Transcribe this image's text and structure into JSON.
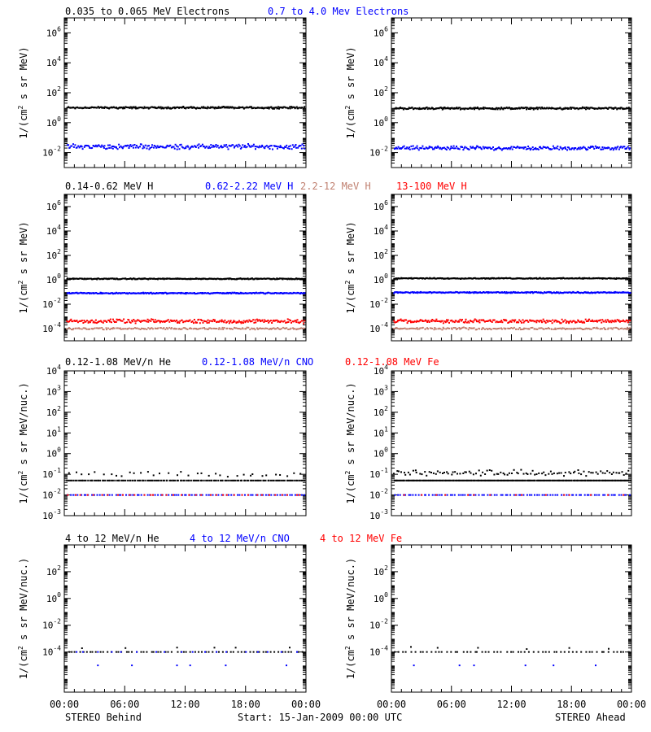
{
  "footer": {
    "left": "STEREO Behind",
    "center": "Start: 15-Jan-2009 00:00 UTC",
    "right": "STEREO Ahead"
  },
  "x_tick_labels": [
    "00:00",
    "06:00",
    "12:00",
    "18:00",
    "00:00"
  ],
  "chart_data": [
    {
      "type": "scatter",
      "panel": "electrons",
      "ylabel": "1/(cm2 s sr MeV)",
      "yscale": "log",
      "y_tick_exponents": [
        -2,
        0,
        2,
        4,
        6
      ],
      "ylim": [
        0.001,
        10000000
      ],
      "legend": [
        {
          "label": "0.035 to 0.065 MeV Electrons",
          "color": "#000000"
        },
        {
          "label": "0.7 to 4.0 Mev Electrons",
          "color": "#0000ff"
        }
      ],
      "series": {
        "behind": [
          {
            "name": "0.035 to 0.065 MeV Electrons",
            "color": "#000000",
            "level": 10,
            "spread_dex": 0.08,
            "density": 1.0
          },
          {
            "name": "0.7 to 4.0 Mev Electrons",
            "color": "#0000ff",
            "level": 0.025,
            "spread_dex": 0.2,
            "density": 0.8
          }
        ],
        "ahead": [
          {
            "name": "0.035 to 0.065 MeV Electrons",
            "color": "#000000",
            "level": 9,
            "spread_dex": 0.08,
            "density": 1.0
          },
          {
            "name": "0.7 to 4.0 Mev Electrons",
            "color": "#0000ff",
            "level": 0.02,
            "spread_dex": 0.15,
            "density": 0.8
          }
        ]
      }
    },
    {
      "type": "scatter",
      "panel": "protons",
      "ylabel": "1/(cm2 s sr MeV)",
      "yscale": "log",
      "y_tick_exponents": [
        -4,
        -2,
        0,
        2,
        4,
        6
      ],
      "ylim": [
        1e-05,
        10000000
      ],
      "legend": [
        {
          "label": "0.14-0.62 MeV H",
          "color": "#000000"
        },
        {
          "label": "0.62-2.22 MeV H",
          "color": "#0000ff"
        },
        {
          "label": "2.2-12 MeV H",
          "color": "#c08070"
        },
        {
          "label": "13-100 MeV H",
          "color": "#ff0000"
        }
      ],
      "series": {
        "behind": [
          {
            "name": "0.14-0.62 MeV H",
            "color": "#000000",
            "level": 1.2,
            "spread_dex": 0.05,
            "density": 1.0
          },
          {
            "name": "0.62-2.22 MeV H",
            "color": "#0000ff",
            "level": 0.08,
            "spread_dex": 0.06,
            "density": 1.0
          },
          {
            "name": "2.2-12 MeV H",
            "color": "#c08070",
            "level": 0.0001,
            "spread_dex": 0.1,
            "density": 0.6
          },
          {
            "name": "13-100 MeV H",
            "color": "#ff0000",
            "level": 0.0004,
            "spread_dex": 0.18,
            "density": 0.8
          }
        ],
        "ahead": [
          {
            "name": "0.14-0.62 MeV H",
            "color": "#000000",
            "level": 1.3,
            "spread_dex": 0.05,
            "density": 1.0
          },
          {
            "name": "0.62-2.22 MeV H",
            "color": "#0000ff",
            "level": 0.09,
            "spread_dex": 0.06,
            "density": 1.0
          },
          {
            "name": "2.2-12 MeV H",
            "color": "#c08070",
            "level": 0.0001,
            "spread_dex": 0.1,
            "density": 0.6
          },
          {
            "name": "13-100 MeV H",
            "color": "#ff0000",
            "level": 0.0004,
            "spread_dex": 0.18,
            "density": 0.8
          }
        ]
      }
    },
    {
      "type": "scatter",
      "panel": "heavy-ions-low",
      "ylabel": "1/(cm2 s sr MeV/nuc.)",
      "yscale": "log",
      "y_tick_exponents": [
        -3,
        -2,
        -1,
        0,
        1,
        2,
        3,
        4
      ],
      "ylim": [
        0.001,
        10000
      ],
      "legend": [
        {
          "label": "0.12-1.08 MeV/n He",
          "color": "#000000"
        },
        {
          "label": "0.12-1.08 MeV/n CNO",
          "color": "#0000ff"
        },
        {
          "label": "0.12-1.08 MeV Fe",
          "color": "#ff0000"
        }
      ],
      "series": {
        "behind": [
          {
            "name": "0.12-1.08 MeV/n He",
            "color": "#000000",
            "level": 0.05,
            "spread_dex": 0.0,
            "density": 0.5
          },
          {
            "name": "0.12-1.08 MeV/n He",
            "color": "#000000",
            "level": 0.1,
            "spread_dex": 0.15,
            "density": 0.12
          },
          {
            "name": "0.12-1.08 MeV/n CNO",
            "color": "#0000ff",
            "level": 0.01,
            "spread_dex": 0.0,
            "density": 0.3
          },
          {
            "name": "0.12-1.08 MeV Fe",
            "color": "#ff0000",
            "level": 0.01,
            "spread_dex": 0.0,
            "density": 0.12
          }
        ],
        "ahead": [
          {
            "name": "0.12-1.08 MeV/n He",
            "color": "#000000",
            "level": 0.05,
            "spread_dex": 0.0,
            "density": 0.75
          },
          {
            "name": "0.12-1.08 MeV/n He",
            "color": "#000000",
            "level": 0.12,
            "spread_dex": 0.18,
            "density": 0.35
          },
          {
            "name": "0.12-1.08 MeV/n CNO",
            "color": "#0000ff",
            "level": 0.01,
            "spread_dex": 0.0,
            "density": 0.3
          },
          {
            "name": "0.12-1.08 MeV Fe",
            "color": "#ff0000",
            "level": 0.01,
            "spread_dex": 0.0,
            "density": 0.05
          }
        ]
      }
    },
    {
      "type": "scatter",
      "panel": "heavy-ions-high",
      "ylabel": "1/(cm2 s sr MeV/nuc.)",
      "yscale": "log",
      "y_tick_exponents": [
        -4,
        -2,
        0,
        2
      ],
      "ylim": [
        1e-07,
        10000
      ],
      "legend": [
        {
          "label": "4 to 12 MeV/n He",
          "color": "#000000"
        },
        {
          "label": "4 to 12 MeV/n CNO",
          "color": "#0000ff"
        },
        {
          "label": "4 to 12 MeV Fe",
          "color": "#ff0000"
        }
      ],
      "series": {
        "behind": [
          {
            "name": "4 to 12 MeV/n He",
            "color": "#000000",
            "level": 0.0001,
            "spread_dex": 0.0,
            "density": 0.22
          },
          {
            "name": "4 to 12 MeV/n He",
            "color": "#000000",
            "level": 0.0002,
            "spread_dex": 0.1,
            "density": 0.02
          },
          {
            "name": "4 to 12 MeV/n CNO",
            "color": "#0000ff",
            "level": 0.0001,
            "spread_dex": 0.0,
            "density": 0.06
          },
          {
            "name": "4 to 12 MeV/n CNO",
            "color": "#0000ff",
            "level": 1e-05,
            "spread_dex": 0.0,
            "density": 0.02
          }
        ],
        "ahead": [
          {
            "name": "4 to 12 MeV/n He",
            "color": "#000000",
            "level": 0.0001,
            "spread_dex": 0.0,
            "density": 0.2
          },
          {
            "name": "4 to 12 MeV/n He",
            "color": "#000000",
            "level": 0.0002,
            "spread_dex": 0.1,
            "density": 0.02
          },
          {
            "name": "4 to 12 MeV/n CNO",
            "color": "#0000ff",
            "level": 1e-05,
            "spread_dex": 0.0,
            "density": 0.02
          }
        ]
      }
    }
  ]
}
